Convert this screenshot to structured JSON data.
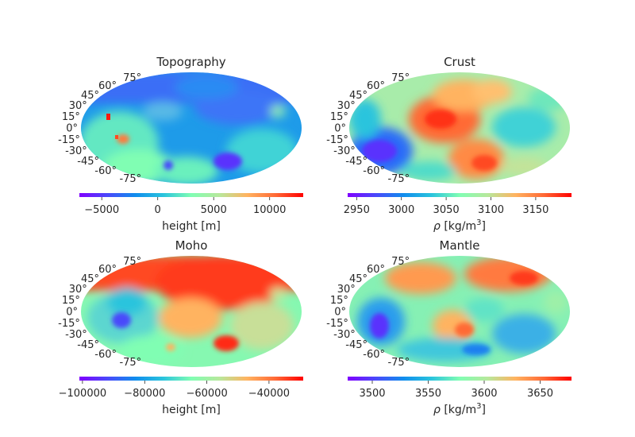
{
  "chart_data": [
    {
      "type": "heatmap",
      "projection": "mollweide",
      "title": "Topography",
      "latitude_ticks": [
        "75°",
        "60°",
        "45°",
        "30°",
        "15°",
        "0°",
        "-15°",
        "-30°",
        "-45°",
        "-60°",
        "-75°"
      ],
      "colormap": "rainbow",
      "colorbar": {
        "label": "height [m]",
        "range": [
          -7000,
          13000
        ],
        "ticks": [
          -5000,
          0,
          5000,
          10000
        ],
        "tick_labels": [
          "−5000",
          "0",
          "5000",
          "10000"
        ]
      }
    },
    {
      "type": "heatmap",
      "projection": "mollweide",
      "title": "Crust",
      "latitude_ticks": [
        "75°",
        "60°",
        "45°",
        "30°",
        "15°",
        "0°",
        "-15°",
        "-30°",
        "-45°",
        "-60°",
        "-75°"
      ],
      "colormap": "rainbow",
      "colorbar": {
        "label_prefix": "ρ",
        "label_unit": "[kg/m",
        "label_sup": "3",
        "label_close": "]",
        "range": [
          2940,
          3190
        ],
        "ticks": [
          2950,
          3000,
          3050,
          3100,
          3150
        ],
        "tick_labels": [
          "2950",
          "3000",
          "3050",
          "3100",
          "3150"
        ]
      }
    },
    {
      "type": "heatmap",
      "projection": "mollweide",
      "title": "Moho",
      "latitude_ticks": [
        "75°",
        "60°",
        "45°",
        "30°",
        "15°",
        "0°",
        "-15°",
        "-30°",
        "-45°",
        "-60°",
        "-75°"
      ],
      "colormap": "rainbow",
      "colorbar": {
        "label": "height [m]",
        "range": [
          -101000,
          -29000
        ],
        "ticks": [
          -100000,
          -80000,
          -60000,
          -40000
        ],
        "tick_labels": [
          "−100000",
          "−80000",
          "−60000",
          "−40000"
        ]
      }
    },
    {
      "type": "heatmap",
      "projection": "mollweide",
      "title": "Mantle",
      "latitude_ticks": [
        "75°",
        "60°",
        "45°",
        "30°",
        "15°",
        "0°",
        "-15°",
        "-30°",
        "-45°",
        "-60°",
        "-75°"
      ],
      "colormap": "rainbow",
      "colorbar": {
        "label_prefix": "ρ",
        "label_unit": "[kg/m",
        "label_sup": "3",
        "label_close": "]",
        "range": [
          3478,
          3678
        ],
        "ticks": [
          3500,
          3550,
          3600,
          3650
        ],
        "tick_labels": [
          "3500",
          "3550",
          "3600",
          "3650"
        ]
      }
    }
  ]
}
